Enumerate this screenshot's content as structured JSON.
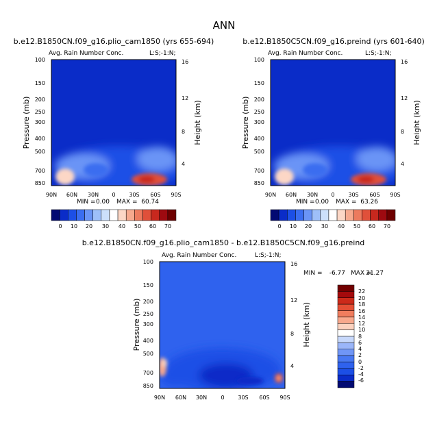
{
  "title": "ANN",
  "colors": {
    "top_palette": [
      "#020a72",
      "#0a2cc8",
      "#1c4fe6",
      "#3a6df0",
      "#6a94f6",
      "#9ebff9",
      "#cce0fb",
      "#ffffff",
      "#fcd7c6",
      "#f6a98e",
      "#ec7a5e",
      "#e0503a",
      "#c8281e",
      "#9e0a10",
      "#6e0000"
    ],
    "diff_palette": [
      "#020a72",
      "#0a2cc8",
      "#1c4fe6",
      "#2f62ee",
      "#4878f2",
      "#7096f6",
      "#9bb6f9",
      "#c7d8fb",
      "#ffffff",
      "#fcd2bf",
      "#f8a88c",
      "#f07d5e",
      "#e44f35",
      "#cc2a1a",
      "#a40a0c",
      "#720000"
    ]
  },
  "labels": {
    "field": "Avg. Rain Number Conc.",
    "domain": "L:S;-1:N;",
    "y_left": "Pressure (mb)",
    "y_right": "Height (km)"
  },
  "chart_data": [
    {
      "type": "heatmap",
      "title": "b.e12.B1850CN.f09_g16.plio_cam1850 (yrs 655-694)",
      "subtitle": "Avg. Rain Number Conc.",
      "xlabel_ticks": [
        "90N",
        "60N",
        "30N",
        "0",
        "30S",
        "60S",
        "90S"
      ],
      "y_left_ticks": [
        "100",
        "150",
        "200",
        "250",
        "300",
        "400",
        "500",
        "700",
        "850"
      ],
      "y_right_ticks": [
        "4",
        "8",
        "12",
        "16"
      ],
      "min_label": "MIN =",
      "min_value": "0.00",
      "max_label": "MAX =",
      "max_value": "60.74",
      "colorbar_ticks": [
        "0",
        "10",
        "20",
        "30",
        "40",
        "50",
        "60",
        "70"
      ],
      "features": [
        {
          "lat": 20,
          "pressure": 760,
          "value": 15
        },
        {
          "lat": -45,
          "pressure": 820,
          "value": 60
        },
        {
          "lat": 80,
          "pressure": 830,
          "value": 35
        }
      ]
    },
    {
      "type": "heatmap",
      "title": "b.e12.B1850C5CN.f09_g16.preind (yrs 601-640)",
      "subtitle": "Avg. Rain Number Conc.",
      "xlabel_ticks": [
        "90N",
        "60N",
        "30N",
        "0",
        "30S",
        "60S",
        "90S"
      ],
      "y_left_ticks": [
        "100",
        "150",
        "200",
        "250",
        "300",
        "400",
        "500",
        "700",
        "850"
      ],
      "y_right_ticks": [
        "4",
        "8",
        "12",
        "16"
      ],
      "min_label": "MIN =",
      "min_value": "0.00",
      "max_label": "MAX =",
      "max_value": "63.26",
      "colorbar_ticks": [
        "0",
        "10",
        "20",
        "30",
        "40",
        "50",
        "60",
        "70"
      ],
      "features": [
        {
          "lat": 20,
          "pressure": 760,
          "value": 15
        },
        {
          "lat": -45,
          "pressure": 820,
          "value": 63
        },
        {
          "lat": 80,
          "pressure": 830,
          "value": 38
        }
      ]
    },
    {
      "type": "heatmap",
      "title": "b.e12.B1850CN.f09_g16.plio_cam1850 - b.e12.B1850C5CN.f09_g16.preind",
      "subtitle": "Avg. Rain Number Conc.",
      "xlabel_ticks": [
        "90N",
        "60N",
        "30N",
        "0",
        "30S",
        "60S",
        "90S"
      ],
      "y_left_ticks": [
        "100",
        "150",
        "200",
        "250",
        "300",
        "400",
        "500",
        "700",
        "850"
      ],
      "y_right_ticks": [
        "4",
        "8",
        "12",
        "16"
      ],
      "min_label": "MIN =",
      "min_value": "-6.77",
      "max_label": "MAX =",
      "max_value": "21.27",
      "colorbar_ticks": [
        "22",
        "20",
        "18",
        "16",
        "14",
        "12",
        "10",
        "8",
        "6",
        "4",
        "2",
        "0",
        "-2",
        "-4",
        "-6"
      ],
      "features": [
        {
          "lat": 80,
          "pressure": 600,
          "value": 12
        },
        {
          "lat": -80,
          "pressure": 800,
          "value": 21
        },
        {
          "lat": 0,
          "pressure": 650,
          "value": -4
        }
      ]
    }
  ]
}
